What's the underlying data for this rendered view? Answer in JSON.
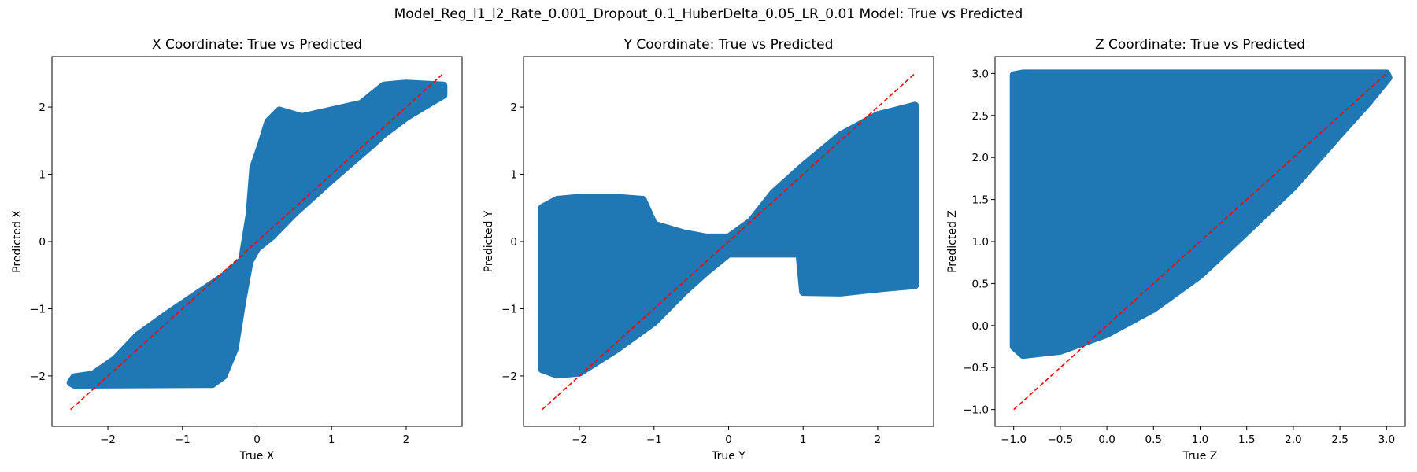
{
  "figure": {
    "suptitle": "Model_Reg_l1_l2_Rate_0.001_Dropout_0.1_HuberDelta_0.05_LR_0.01 Model: True vs Predicted",
    "scatter_color": "#1f77b4",
    "reference_line_color": "#ff0000"
  },
  "chart_data": [
    {
      "type": "scatter",
      "title": "X Coordinate: True vs Predicted",
      "xlabel": "True X",
      "ylabel": "Predicted X",
      "xlim": [
        -2.75,
        2.75
      ],
      "ylim": [
        -2.75,
        2.75
      ],
      "xticks": [
        -2,
        -1,
        0,
        1,
        2
      ],
      "yticks": [
        -2,
        -1,
        0,
        1,
        2
      ],
      "xtick_labels": [
        "−2",
        "−1",
        "0",
        "1",
        "2"
      ],
      "ytick_labels": [
        "−2",
        "−1",
        "0",
        "1",
        "2"
      ],
      "reference_line": {
        "x": [
          -2.5,
          2.5
        ],
        "y": [
          -2.5,
          2.5
        ],
        "style": "dashed"
      },
      "point_cloud_outline": [
        [
          -2.5,
          -2.1
        ],
        [
          -2.45,
          -2.02
        ],
        [
          -2.2,
          -1.98
        ],
        [
          -1.9,
          -1.75
        ],
        [
          -1.6,
          -1.4
        ],
        [
          -1.2,
          -1.08
        ],
        [
          -0.8,
          -0.78
        ],
        [
          -0.45,
          -0.52
        ],
        [
          -0.2,
          -0.28
        ],
        [
          -0.1,
          0.4
        ],
        [
          -0.05,
          1.1
        ],
        [
          0.05,
          1.42
        ],
        [
          0.15,
          1.78
        ],
        [
          0.3,
          1.95
        ],
        [
          0.6,
          1.85
        ],
        [
          1.0,
          1.95
        ],
        [
          1.4,
          2.05
        ],
        [
          1.7,
          2.32
        ],
        [
          2.0,
          2.35
        ],
        [
          2.5,
          2.32
        ],
        [
          2.5,
          2.18
        ],
        [
          2.3,
          2.05
        ],
        [
          2.0,
          1.85
        ],
        [
          1.7,
          1.6
        ],
        [
          1.5,
          1.4
        ],
        [
          1.0,
          0.92
        ],
        [
          0.5,
          0.42
        ],
        [
          0.2,
          0.08
        ],
        [
          0.0,
          -0.1
        ],
        [
          -0.1,
          -0.3
        ],
        [
          -0.2,
          -0.9
        ],
        [
          -0.3,
          -1.6
        ],
        [
          -0.45,
          -2.0
        ],
        [
          -0.6,
          -2.12
        ],
        [
          -2.45,
          -2.13
        ]
      ]
    },
    {
      "type": "scatter",
      "title": "Y Coordinate: True vs Predicted",
      "xlabel": "True Y",
      "ylabel": "Predicted Y",
      "xlim": [
        -2.75,
        2.75
      ],
      "ylim": [
        -2.75,
        2.75
      ],
      "xticks": [
        -2,
        -1,
        0,
        1,
        2
      ],
      "yticks": [
        -2,
        -1,
        0,
        1,
        2
      ],
      "xtick_labels": [
        "−2",
        "−1",
        "0",
        "1",
        "2"
      ],
      "ytick_labels": [
        "−2",
        "−1",
        "0",
        "1",
        "2"
      ],
      "reference_line": {
        "x": [
          -2.5,
          2.5
        ],
        "y": [
          -2.5,
          2.5
        ],
        "style": "dashed"
      },
      "point_cloud_outline": [
        [
          -2.5,
          0.5
        ],
        [
          -2.3,
          0.62
        ],
        [
          -2.0,
          0.65
        ],
        [
          -1.5,
          0.65
        ],
        [
          -1.15,
          0.62
        ],
        [
          -1.0,
          0.25
        ],
        [
          -0.6,
          0.12
        ],
        [
          -0.3,
          0.06
        ],
        [
          0.0,
          0.06
        ],
        [
          0.3,
          0.3
        ],
        [
          0.6,
          0.72
        ],
        [
          1.0,
          1.12
        ],
        [
          1.5,
          1.58
        ],
        [
          2.0,
          1.88
        ],
        [
          2.5,
          2.02
        ],
        [
          2.5,
          -0.65
        ],
        [
          2.0,
          -0.7
        ],
        [
          1.5,
          -0.76
        ],
        [
          1.0,
          -0.75
        ],
        [
          0.95,
          -0.18
        ],
        [
          0.6,
          -0.18
        ],
        [
          0.0,
          -0.18
        ],
        [
          -0.3,
          -0.45
        ],
        [
          -0.6,
          -0.75
        ],
        [
          -1.0,
          -1.2
        ],
        [
          -1.5,
          -1.6
        ],
        [
          -2.0,
          -1.95
        ],
        [
          -2.3,
          -1.98
        ],
        [
          -2.5,
          -1.9
        ]
      ]
    },
    {
      "type": "scatter",
      "title": "Z Coordinate: True vs Predicted",
      "xlabel": "True Z",
      "ylabel": "Predicted Z",
      "xlim": [
        -1.2,
        3.2
      ],
      "ylim": [
        -1.2,
        3.2
      ],
      "xticks": [
        -1.0,
        -0.5,
        0.0,
        0.5,
        1.0,
        1.5,
        2.0,
        2.5,
        3.0
      ],
      "yticks": [
        -1.0,
        -0.5,
        0.0,
        0.5,
        1.0,
        1.5,
        2.0,
        2.5,
        3.0
      ],
      "xtick_labels": [
        "−1.0",
        "−0.5",
        "0.0",
        "0.5",
        "1.0",
        "1.5",
        "2.0",
        "2.5",
        "3.0"
      ],
      "ytick_labels": [
        "−1.0",
        "−0.5",
        "0.0",
        "0.5",
        "1.0",
        "1.5",
        "2.0",
        "2.5",
        "3.0"
      ],
      "reference_line": {
        "x": [
          -1.0,
          3.0
        ],
        "y": [
          -1.0,
          3.0
        ],
        "style": "dashed"
      },
      "point_cloud_outline": [
        [
          -1.0,
          2.98
        ],
        [
          -0.9,
          3.0
        ],
        [
          3.0,
          3.0
        ],
        [
          3.02,
          2.95
        ],
        [
          2.8,
          2.65
        ],
        [
          2.5,
          2.28
        ],
        [
          2.0,
          1.65
        ],
        [
          1.5,
          1.12
        ],
        [
          1.0,
          0.6
        ],
        [
          0.5,
          0.2
        ],
        [
          0.0,
          -0.1
        ],
        [
          -0.5,
          -0.3
        ],
        [
          -0.9,
          -0.35
        ],
        [
          -1.0,
          -0.25
        ]
      ]
    }
  ]
}
